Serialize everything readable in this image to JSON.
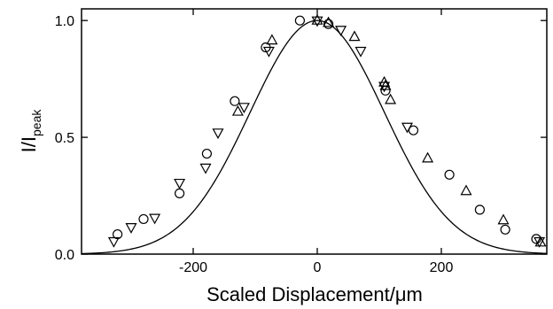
{
  "chart_data": {
    "type": "scatter",
    "xlabel": "Scaled Displacement/μm",
    "ylabel": {
      "main": "I/I",
      "sub": "peak"
    },
    "xlim": [
      -380,
      370
    ],
    "ylim": [
      0,
      1.05
    ],
    "xticks": [
      -200,
      0,
      200
    ],
    "xtick_labels": [
      "-200",
      "0",
      "200"
    ],
    "yticks": [
      0.0,
      0.5,
      1.0
    ],
    "ytick_labels": [
      "0.0",
      "0.5",
      "1.0"
    ],
    "grid": false,
    "series": [
      {
        "marker": "circle",
        "points": [
          [
            -322,
            0.085
          ],
          [
            -280,
            0.15
          ],
          [
            -222,
            0.26
          ],
          [
            -178,
            0.43
          ],
          [
            -133,
            0.655
          ],
          [
            -83,
            0.885
          ],
          [
            -28,
            1.0
          ],
          [
            18,
            0.985
          ],
          [
            110,
            0.7
          ],
          [
            155,
            0.53
          ],
          [
            213,
            0.34
          ],
          [
            262,
            0.19
          ],
          [
            303,
            0.105
          ],
          [
            353,
            0.065
          ]
        ]
      },
      {
        "marker": "triangle-up",
        "points": [
          [
            -128,
            0.61
          ],
          [
            -73,
            0.915
          ],
          [
            0,
            1.0
          ],
          [
            18,
            0.99
          ],
          [
            60,
            0.93
          ],
          [
            108,
            0.735
          ],
          [
            110,
            0.72
          ],
          [
            118,
            0.66
          ],
          [
            178,
            0.41
          ],
          [
            240,
            0.27
          ],
          [
            300,
            0.145
          ],
          [
            360,
            0.05
          ]
        ]
      },
      {
        "marker": "triangle-down",
        "points": [
          [
            -328,
            0.055
          ],
          [
            -300,
            0.115
          ],
          [
            -262,
            0.155
          ],
          [
            -222,
            0.305
          ],
          [
            -180,
            0.37
          ],
          [
            -160,
            0.52
          ],
          [
            -118,
            0.63
          ],
          [
            -78,
            0.87
          ],
          [
            0,
            1.0
          ],
          [
            38,
            0.96
          ],
          [
            70,
            0.87
          ],
          [
            108,
            0.72
          ],
          [
            145,
            0.545
          ],
          [
            358,
            0.055
          ]
        ]
      }
    ],
    "fit_curve": {
      "type": "gaussian",
      "center": 0,
      "fwhm": 255,
      "amplitude": 1.0
    }
  }
}
